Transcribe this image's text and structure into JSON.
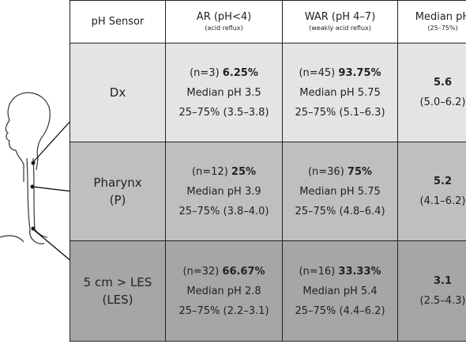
{
  "table": {
    "header": [
      {
        "title": "pH Sensor"
      },
      {
        "title": "AR (pH<4)",
        "subtitle": "(acid reflux)"
      },
      {
        "title": "WAR (pH 4–7)",
        "subtitle": "(weakly acid reflux)"
      },
      {
        "title": "Median pH",
        "subtitle": "(25–75%)"
      }
    ],
    "rows": [
      {
        "sensor": [
          "Dx"
        ],
        "ar": {
          "n": "(n=3)",
          "percent": "6.25%",
          "median": "Median pH 3.5",
          "range": "25–75% (3.5–3.8)"
        },
        "war": {
          "n": "(n=45)",
          "percent": "93.75%",
          "median": "Median pH 5.75",
          "range": "25–75% (5.1–6.3)"
        },
        "median": {
          "value": "5.6",
          "range": "(5.0–6.2)"
        }
      },
      {
        "sensor": [
          "Pharynx",
          "(P)"
        ],
        "ar": {
          "n": "(n=12)",
          "percent": "25%",
          "median": "Median pH 3.9",
          "range": "25–75% (3.8–4.0)"
        },
        "war": {
          "n": "(n=36)",
          "percent": "75%",
          "median": "Median pH 5.75",
          "range": "25–75% (4.8–6.4)"
        },
        "median": {
          "value": "5.2",
          "range": "(4.1–6.2)"
        }
      },
      {
        "sensor": [
          "5 cm > LES",
          "(LES)"
        ],
        "ar": {
          "n": "(n=32)",
          "percent": "66.67%",
          "median": "Median pH 2.8",
          "range": "25–75% (2.2–3.1)"
        },
        "war": {
          "n": "(n=16)",
          "percent": "33.33%",
          "median": "Median pH 5.4",
          "range": "25–75% (4.4–6.2)"
        },
        "median": {
          "value": "3.1",
          "range": "(2.5–4.3)"
        }
      }
    ]
  }
}
